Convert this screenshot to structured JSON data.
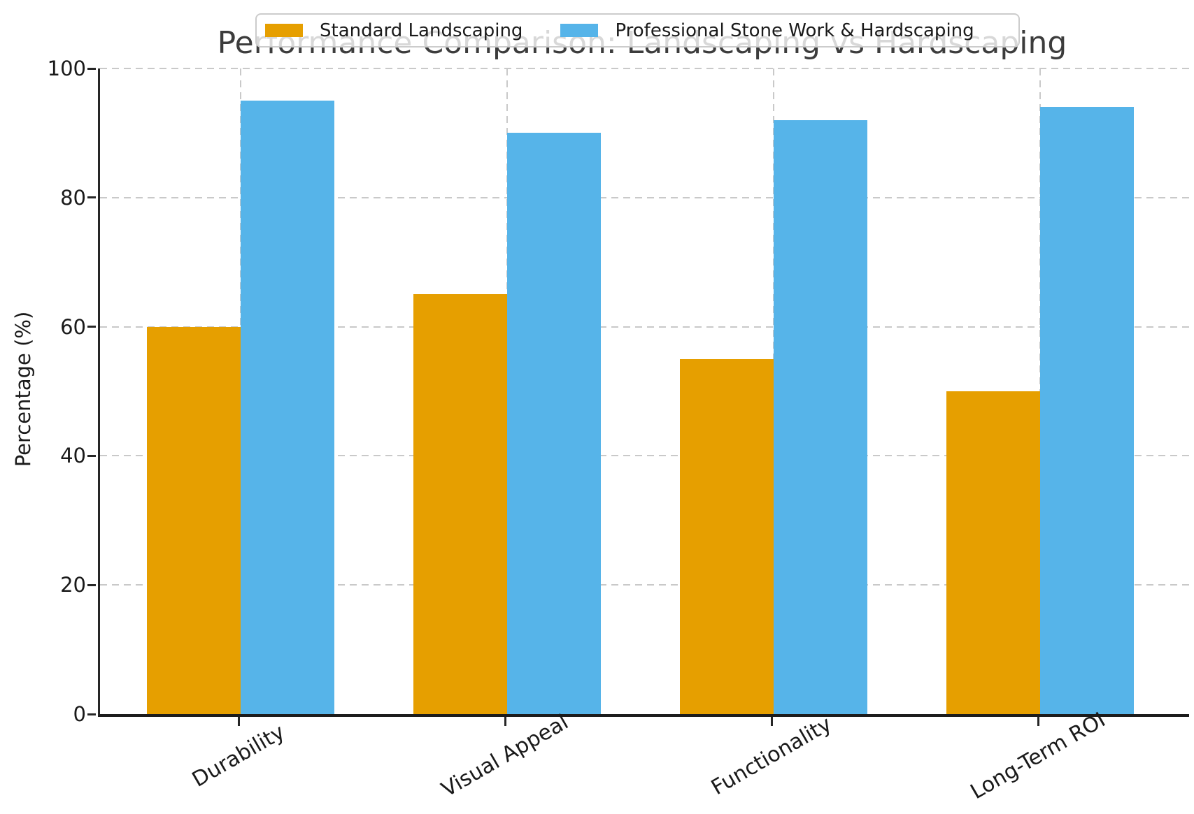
{
  "chart_data": {
    "type": "bar",
    "title": "Performance Comparison: Landscaping vs Hardscaping",
    "xlabel": "",
    "ylabel": "Percentage (%)",
    "categories": [
      "Durability",
      "Visual Appeal",
      "Functionality",
      "Long-Term ROI"
    ],
    "series": [
      {
        "name": "Standard Landscaping",
        "color": "#E69F00",
        "values": [
          60,
          65,
          55,
          50
        ]
      },
      {
        "name": "Professional Stone Work & Hardscaping",
        "color": "#56B4E9",
        "values": [
          95,
          90,
          92,
          94
        ]
      }
    ],
    "ylim": [
      0,
      100
    ],
    "yticks": [
      0,
      20,
      40,
      60,
      80,
      100
    ],
    "grid": true,
    "grid_style": "dashed",
    "legend_position": "top-center",
    "colors": {
      "grid": "#c9c9c9",
      "axis": "#262626",
      "title_text": "#3c3c3c",
      "tick_text": "#1a1a1a",
      "legend_border": "#cccccc",
      "legend_background": "rgba(255,255,255,0.8)",
      "figure_background": "#ffffff"
    }
  }
}
